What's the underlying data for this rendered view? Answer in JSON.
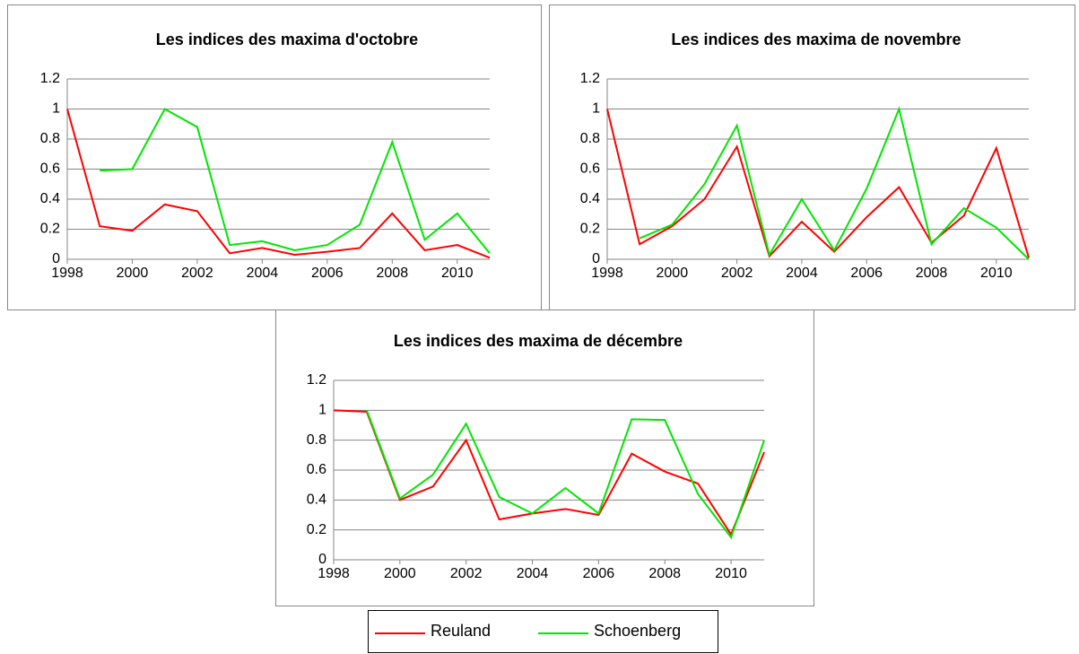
{
  "chart_data": [
    {
      "type": "line",
      "title": "Les indices des maxima d'octobre",
      "x": [
        1998,
        1999,
        2000,
        2001,
        2002,
        2003,
        2004,
        2005,
        2006,
        2007,
        2008,
        2009,
        2010,
        2011
      ],
      "series": [
        {
          "name": "Reuland",
          "color": "#ff0000",
          "values": [
            1,
            0.22,
            0.19,
            0.365,
            0.32,
            0.04,
            0.075,
            0.03,
            0.05,
            0.075,
            0.305,
            0.06,
            0.095,
            0.01
          ]
        },
        {
          "name": "Schoenberg",
          "color": "#00e600",
          "values": [
            null,
            0.59,
            0.6,
            1,
            0.88,
            0.095,
            0.12,
            0.06,
            0.095,
            0.23,
            0.78,
            0.13,
            0.305,
            0.04
          ]
        }
      ],
      "xlim": [
        1998,
        2011
      ],
      "xticks": [
        1998,
        2000,
        2002,
        2004,
        2006,
        2008,
        2010
      ],
      "ylim": [
        0,
        1.2
      ],
      "yticks": [
        0,
        0.2,
        0.4,
        0.6,
        0.8,
        1,
        1.2
      ],
      "grid": true
    },
    {
      "type": "line",
      "title": "Les indices des maxima de novembre",
      "x": [
        1998,
        1999,
        2000,
        2001,
        2002,
        2003,
        2004,
        2005,
        2006,
        2007,
        2008,
        2009,
        2010,
        2011
      ],
      "series": [
        {
          "name": "Reuland",
          "color": "#ff0000",
          "values": [
            1,
            0.1,
            0.22,
            0.4,
            0.75,
            0.02,
            0.25,
            0.05,
            0.28,
            0.48,
            0.11,
            0.29,
            0.74,
            0.01
          ]
        },
        {
          "name": "Schoenberg",
          "color": "#00e600",
          "values": [
            null,
            0.14,
            0.23,
            0.5,
            0.89,
            0.03,
            0.4,
            0.06,
            0.47,
            1,
            0.1,
            0.34,
            0.21,
            0
          ]
        }
      ],
      "xlim": [
        1998,
        2011
      ],
      "xticks": [
        1998,
        2000,
        2002,
        2004,
        2006,
        2008,
        2010
      ],
      "ylim": [
        0,
        1.2
      ],
      "yticks": [
        0,
        0.2,
        0.4,
        0.6,
        0.8,
        1,
        1.2
      ],
      "grid": true
    },
    {
      "type": "line",
      "title": "Les indices des maxima de décembre",
      "x": [
        1998,
        1999,
        2000,
        2001,
        2002,
        2003,
        2004,
        2005,
        2006,
        2007,
        2008,
        2009,
        2010,
        2011
      ],
      "series": [
        {
          "name": "Reuland",
          "color": "#ff0000",
          "values": [
            1,
            0.99,
            0.4,
            0.49,
            0.8,
            0.27,
            0.31,
            0.34,
            0.3,
            0.71,
            0.59,
            0.51,
            0.17,
            0.72
          ]
        },
        {
          "name": "Schoenberg",
          "color": "#00e600",
          "values": [
            null,
            1,
            0.41,
            0.57,
            0.91,
            0.42,
            0.31,
            0.48,
            0.31,
            0.94,
            0.935,
            0.44,
            0.15,
            0.8
          ]
        }
      ],
      "xlim": [
        1998,
        2011
      ],
      "xticks": [
        1998,
        2000,
        2002,
        2004,
        2006,
        2008,
        2010
      ],
      "ylim": [
        0,
        1.2
      ],
      "yticks": [
        0,
        0.2,
        0.4,
        0.6,
        0.8,
        1,
        1.2
      ],
      "grid": true
    }
  ]
}
